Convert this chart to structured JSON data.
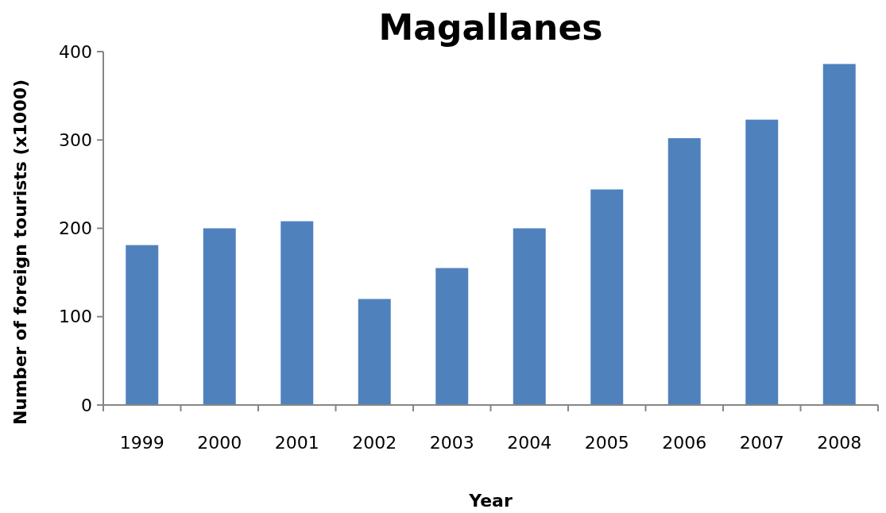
{
  "chart_data": {
    "type": "bar",
    "title": "Magallanes",
    "xlabel": "Year",
    "ylabel": "Number of  foreign tourists (x1000)",
    "categories": [
      "1999",
      "2000",
      "2001",
      "2002",
      "2003",
      "2004",
      "2005",
      "2006",
      "2007",
      "2008"
    ],
    "values": [
      181,
      200,
      208,
      120,
      155,
      200,
      244,
      302,
      323,
      386
    ],
    "color": "#4f81bd",
    "ylim": [
      0,
      400
    ],
    "yticks": [
      0,
      100,
      200,
      300,
      400
    ],
    "grid": false
  }
}
